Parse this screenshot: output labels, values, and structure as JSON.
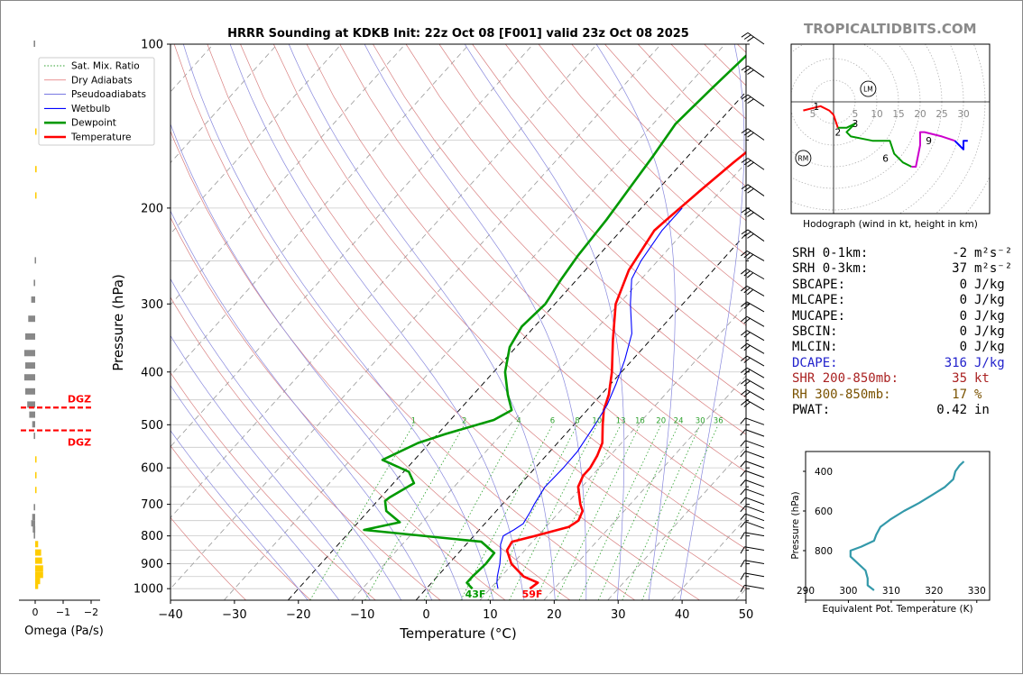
{
  "brand": "TROPICALTIDBITS.COM",
  "chart_data": [
    {
      "type": "line",
      "title": "HRRR Sounding at KDKB Init: 22z Oct 08 [F001] valid 23z Oct 08 2025",
      "xlabel": "Temperature (°C)",
      "ylabel": "Pressure (hPa)",
      "xlim": [
        -40,
        50
      ],
      "ylim": [
        1050,
        100
      ],
      "y_scale": "log",
      "x_ticks": [
        "−40",
        "−30",
        "−20",
        "−10",
        "0",
        "10",
        "20",
        "30",
        "40",
        "50"
      ],
      "y_ticks": [
        "100",
        "200",
        "300",
        "400",
        "500",
        "600",
        "700",
        "800",
        "900",
        "1000"
      ],
      "legend": {
        "placement": "top-left",
        "entries": [
          {
            "label": "Sat. Mix. Ratio",
            "color": "#2ca02c",
            "style": "dotted"
          },
          {
            "label": "Dry Adiabats",
            "color": "#d62728",
            "style": "solid-thin"
          },
          {
            "label": "Pseudoadiabats",
            "color": "#1f1fd0",
            "style": "solid-thin"
          },
          {
            "label": "Wetbulb",
            "color": "#0000ff",
            "style": "solid"
          },
          {
            "label": "Dewpoint",
            "color": "#009900",
            "style": "solid-thick"
          },
          {
            "label": "Temperature",
            "color": "#ff0000",
            "style": "solid-thick"
          }
        ]
      },
      "series": [
        {
          "name": "Temperature",
          "color": "#ff0000",
          "points": [
            [
              1000,
              16.2
            ],
            [
              975,
              16.6
            ],
            [
              950,
              13.5
            ],
            [
              900,
              9.8
            ],
            [
              850,
              7.2
            ],
            [
              820,
              6.8
            ],
            [
              800,
              9.6
            ],
            [
              770,
              13.6
            ],
            [
              750,
              14.2
            ],
            [
              720,
              13.5
            ],
            [
              700,
              12.2
            ],
            [
              650,
              9.4
            ],
            [
              620,
              8.6
            ],
            [
              600,
              8.6
            ],
            [
              570,
              8.0
            ],
            [
              540,
              7.0
            ],
            [
              500,
              4.5
            ],
            [
              470,
              2.6
            ],
            [
              440,
              1.2
            ],
            [
              400,
              -1.5
            ],
            [
              350,
              -5.8
            ],
            [
              300,
              -10.5
            ],
            [
              260,
              -13.2
            ],
            [
              220,
              -14.8
            ],
            [
              210,
              -14.4
            ],
            [
              185,
              -13.2
            ],
            [
              165,
              -12.0
            ],
            [
              150,
              -10.8
            ],
            [
              130,
              -8.5
            ],
            [
              115,
              -5.5
            ],
            [
              100,
              -2.0
            ]
          ]
        },
        {
          "name": "Dewpoint",
          "color": "#009900",
          "points": [
            [
              1000,
              7.2
            ],
            [
              975,
              5.5
            ],
            [
              950,
              5.5
            ],
            [
              900,
              5.8
            ],
            [
              860,
              5.6
            ],
            [
              820,
              2.0
            ],
            [
              780,
              -18.0
            ],
            [
              755,
              -13.5
            ],
            [
              720,
              -17.2
            ],
            [
              690,
              -18.8
            ],
            [
              680,
              -18.6
            ],
            [
              640,
              -16.8
            ],
            [
              610,
              -19.2
            ],
            [
              580,
              -25.0
            ],
            [
              540,
              -21.8
            ],
            [
              520,
              -18.8
            ],
            [
              490,
              -13.2
            ],
            [
              470,
              -11.8
            ],
            [
              440,
              -14.6
            ],
            [
              400,
              -18.2
            ],
            [
              360,
              -21.0
            ],
            [
              330,
              -22.0
            ],
            [
              300,
              -21.5
            ],
            [
              270,
              -22.5
            ],
            [
              245,
              -23.2
            ],
            [
              210,
              -23.8
            ],
            [
              185,
              -24.6
            ],
            [
              160,
              -25.5
            ],
            [
              140,
              -26.5
            ],
            [
              120,
              -25.8
            ],
            [
              100,
              -24.8
            ]
          ]
        },
        {
          "name": "Wetbulb",
          "color": "#0000ff",
          "points": [
            [
              1000,
              11.2
            ],
            [
              975,
              10.2
            ],
            [
              950,
              9.4
            ],
            [
              900,
              8.0
            ],
            [
              860,
              6.6
            ],
            [
              830,
              5.4
            ],
            [
              800,
              4.6
            ],
            [
              780,
              5.4
            ],
            [
              760,
              6.0
            ],
            [
              720,
              5.4
            ],
            [
              700,
              5.0
            ],
            [
              650,
              4.2
            ],
            [
              600,
              4.4
            ],
            [
              560,
              4.3
            ],
            [
              500,
              3.3
            ],
            [
              460,
              2.4
            ],
            [
              420,
              0.8
            ],
            [
              380,
              -1.2
            ],
            [
              340,
              -3.8
            ],
            [
              300,
              -8.2
            ],
            [
              270,
              -11.5
            ],
            [
              250,
              -12.6
            ],
            [
              220,
              -13.6
            ],
            [
              200,
              -13.6
            ]
          ]
        }
      ],
      "surface_labels": {
        "dewpoint": "43F",
        "temperature": "59F"
      },
      "mixing_ratio_labels": [
        "1",
        "2",
        "4",
        "6",
        "8",
        "10",
        "13",
        "16",
        "20",
        "24",
        "30",
        "36"
      ],
      "wind_barb_levels": [
        100,
        115,
        130,
        150,
        170,
        190,
        210,
        230,
        250,
        270,
        290,
        310,
        330,
        350,
        370,
        390,
        410,
        430,
        450,
        470,
        500,
        525,
        550,
        575,
        600,
        625,
        650,
        675,
        700,
        725,
        750,
        775,
        800,
        850,
        900,
        950,
        1000
      ]
    },
    {
      "type": "bar",
      "title": "",
      "xlabel": "Omega (Pa/s)",
      "x_ticks": [
        "0",
        "−1",
        "−2"
      ],
      "dgz_label": "DGZ",
      "dgz_pressures": [
        465,
        512
      ],
      "values_by_pressure": [
        [
          100,
          -0.15
        ],
        [
          145,
          0.1
        ],
        [
          170,
          0.15
        ],
        [
          190,
          0.05
        ],
        [
          250,
          -0.05
        ],
        [
          275,
          -0.15
        ],
        [
          295,
          -0.4
        ],
        [
          320,
          -0.7
        ],
        [
          345,
          -1.0
        ],
        [
          370,
          -1.1
        ],
        [
          390,
          -1.0
        ],
        [
          410,
          -1.1
        ],
        [
          435,
          -1.0
        ],
        [
          460,
          -0.8
        ],
        [
          480,
          -0.6
        ],
        [
          500,
          -0.3
        ],
        [
          525,
          -0.15
        ],
        [
          580,
          0.05
        ],
        [
          620,
          0.05
        ],
        [
          660,
          0.1
        ],
        [
          710,
          -0.15
        ],
        [
          740,
          -0.3
        ],
        [
          760,
          -0.4
        ],
        [
          780,
          -0.25
        ],
        [
          800,
          -0.15
        ],
        [
          830,
          0.3
        ],
        [
          860,
          0.6
        ],
        [
          890,
          0.7
        ],
        [
          920,
          0.8
        ],
        [
          945,
          0.8
        ],
        [
          970,
          0.5
        ],
        [
          990,
          0.3
        ]
      ]
    },
    {
      "type": "line",
      "title": "Hodograph (wind in kt, height in km)",
      "ring_labels": [
        "5",
        "10",
        "15",
        "20",
        "25",
        "30"
      ],
      "markers": [
        "LM",
        "RM"
      ],
      "height_labels": [
        {
          "text": "1",
          "u": -4,
          "v": -1
        },
        {
          "text": "2",
          "u": 1,
          "v": -7
        },
        {
          "text": "3",
          "u": 5,
          "v": -5
        },
        {
          "text": "6",
          "u": 12,
          "v": -13
        },
        {
          "text": "9",
          "u": 22,
          "v": -9
        }
      ],
      "storm_motion": {
        "LM": {
          "u": 8,
          "v": 3
        },
        "RM": {
          "u": -7,
          "v": -13
        }
      },
      "segments": [
        {
          "color": "#ff0000",
          "points": [
            [
              -7,
              -2
            ],
            [
              -3,
              -1
            ],
            [
              -1,
              -2
            ],
            [
              0,
              -3
            ],
            [
              1,
              -6
            ]
          ]
        },
        {
          "color": "#009900",
          "points": [
            [
              1,
              -6
            ],
            [
              3,
              -6
            ],
            [
              5,
              -5
            ],
            [
              4,
              -6
            ],
            [
              3,
              -7
            ],
            [
              4,
              -8
            ],
            [
              9,
              -9
            ],
            [
              13,
              -9
            ],
            [
              14,
              -12
            ],
            [
              16,
              -14
            ],
            [
              18,
              -15
            ]
          ]
        },
        {
          "color": "#cc00cc",
          "points": [
            [
              18,
              -15
            ],
            [
              19,
              -15
            ],
            [
              20,
              -10
            ],
            [
              20,
              -7
            ],
            [
              21,
              -7
            ],
            [
              25,
              -8
            ],
            [
              28,
              -9
            ]
          ]
        },
        {
          "color": "#0000ff",
          "points": [
            [
              28,
              -9
            ],
            [
              29,
              -10
            ],
            [
              30,
              -11
            ],
            [
              30,
              -9
            ],
            [
              31,
              -9
            ]
          ]
        }
      ]
    },
    {
      "type": "line",
      "title": "",
      "xlabel": "Equivalent Pot. Temperature (K)",
      "ylabel": "Pressure (hPa)",
      "xlim": [
        290,
        333
      ],
      "x_ticks": [
        "290",
        "300",
        "310",
        "320",
        "330"
      ],
      "y_ticks": [
        "400",
        "600",
        "800"
      ],
      "series": [
        {
          "name": "",
          "color": "#3399aa",
          "points": [
            [
              1000,
              306
            ],
            [
              975,
              304.5
            ],
            [
              940,
              304.5
            ],
            [
              900,
              304
            ],
            [
              860,
              302
            ],
            [
              830,
              300.5
            ],
            [
              800,
              300.5
            ],
            [
              780,
              303
            ],
            [
              750,
              306
            ],
            [
              720,
              306.5
            ],
            [
              680,
              307.5
            ],
            [
              640,
              310
            ],
            [
              600,
              313
            ],
            [
              560,
              316.5
            ],
            [
              520,
              319.5
            ],
            [
              480,
              322.5
            ],
            [
              440,
              324.5
            ],
            [
              400,
              325
            ],
            [
              370,
              326
            ],
            [
              350,
              327
            ]
          ]
        }
      ]
    }
  ],
  "stats": [
    {
      "label": "SRH 0-1km:",
      "value": "-2",
      "unit": "m²s⁻²",
      "color": "#000000"
    },
    {
      "label": "SRH 0-3km:",
      "value": "37",
      "unit": "m²s⁻²",
      "color": "#000000"
    },
    {
      "label": "SBCAPE:",
      "value": "0",
      "unit": "J/kg",
      "color": "#000000"
    },
    {
      "label": "MLCAPE:",
      "value": "0",
      "unit": "J/kg",
      "color": "#000000"
    },
    {
      "label": "MUCAPE:",
      "value": "0",
      "unit": "J/kg",
      "color": "#000000"
    },
    {
      "label": "SBCIN:",
      "value": "0",
      "unit": "J/kg",
      "color": "#000000"
    },
    {
      "label": "MLCIN:",
      "value": "0",
      "unit": "J/kg",
      "color": "#000000"
    },
    {
      "label": "DCAPE:",
      "value": "316",
      "unit": "J/kg",
      "color": "#2222cc"
    },
    {
      "label": "SHR 200-850mb:",
      "value": "35",
      "unit": "kt",
      "color": "#aa2222"
    },
    {
      "label": "RH 300-850mb:",
      "value": "17",
      "unit": "%",
      "color": "#7a5200"
    },
    {
      "label": "PWAT:",
      "value": "0.42",
      "unit": "in",
      "color": "#000000"
    }
  ]
}
